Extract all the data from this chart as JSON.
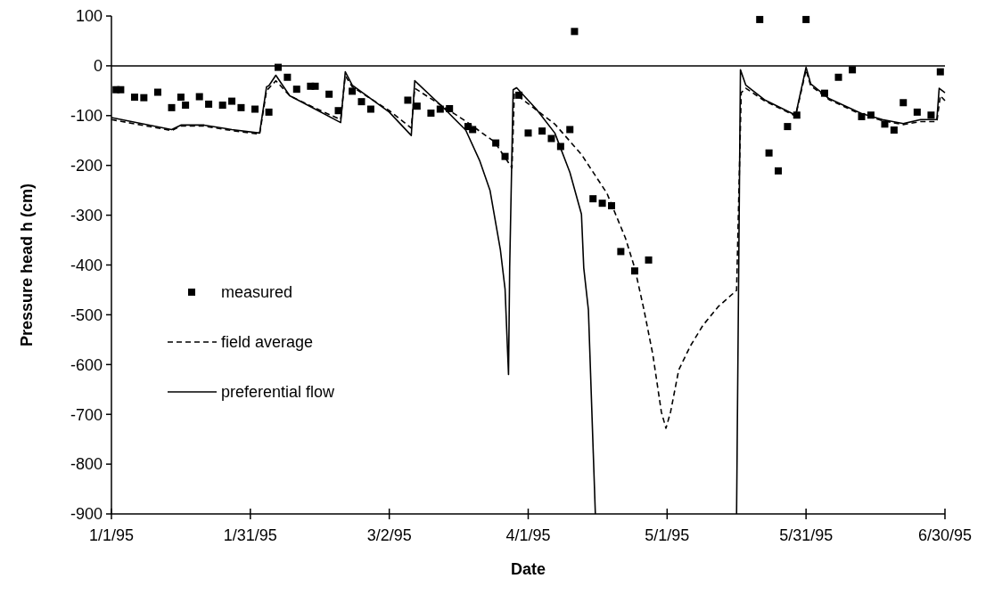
{
  "chart_data": {
    "type": "line",
    "xlabel": "Date",
    "ylabel": "Pressure head h (cm)",
    "xlim": [
      "1995-01-01",
      "1995-06-30"
    ],
    "xticks": [
      {
        "value": "1995-01-01",
        "label": "1/1/95"
      },
      {
        "value": "1995-01-31",
        "label": "1/31/95"
      },
      {
        "value": "1995-03-02",
        "label": "3/2/95"
      },
      {
        "value": "1995-04-01",
        "label": "4/1/95"
      },
      {
        "value": "1995-05-01",
        "label": "5/1/95"
      },
      {
        "value": "1995-05-31",
        "label": "5/31/95"
      },
      {
        "value": "1995-06-30",
        "label": "6/30/95"
      }
    ],
    "ylim": [
      -900,
      100
    ],
    "yticks": [
      -900,
      -800,
      -700,
      -600,
      -500,
      -400,
      -300,
      -200,
      -100,
      0,
      100
    ],
    "grid": false,
    "legend": "left",
    "ref_lines": [
      {
        "axis": "y",
        "value": 0,
        "color": "#000000"
      }
    ],
    "series": [
      {
        "name": "measured",
        "type": "scatter",
        "marker": "square",
        "color": "#000000",
        "x": [
          "1995-01-02",
          "1995-01-03",
          "1995-01-06",
          "1995-01-08",
          "1995-01-11",
          "1995-01-14",
          "1995-01-16",
          "1995-01-17",
          "1995-01-20",
          "1995-01-22",
          "1995-01-25",
          "1995-01-27",
          "1995-01-29",
          "1995-02-01",
          "1995-02-04",
          "1995-02-06",
          "1995-02-08",
          "1995-02-10",
          "1995-02-13",
          "1995-02-14",
          "1995-02-17",
          "1995-02-19",
          "1995-02-22",
          "1995-02-24",
          "1995-02-26",
          "1995-03-06",
          "1995-03-08",
          "1995-03-11",
          "1995-03-13",
          "1995-03-15",
          "1995-03-19",
          "1995-03-20",
          "1995-03-25",
          "1995-03-27",
          "1995-03-30",
          "1995-04-01",
          "1995-04-04",
          "1995-04-06",
          "1995-04-08",
          "1995-04-10",
          "1995-04-11",
          "1995-04-15",
          "1995-04-17",
          "1995-04-19",
          "1995-04-21",
          "1995-04-24",
          "1995-04-27",
          "1995-05-21",
          "1995-05-23",
          "1995-05-25",
          "1995-05-27",
          "1995-05-29",
          "1995-05-31",
          "1995-06-04",
          "1995-06-07",
          "1995-06-10",
          "1995-06-12",
          "1995-06-14",
          "1995-06-17",
          "1995-06-19",
          "1995-06-21",
          "1995-06-24",
          "1995-06-27",
          "1995-06-29"
        ],
        "values": [
          -48,
          -48,
          -63,
          -64,
          -53,
          -84,
          -63,
          -79,
          -62,
          -77,
          -79,
          -71,
          -84,
          -87,
          -93,
          -3,
          -23,
          -47,
          -41,
          -41,
          -57,
          -90,
          -51,
          -72,
          -87,
          -69,
          -81,
          -95,
          -87,
          -86,
          -122,
          -128,
          -155,
          -182,
          -59,
          -135,
          -131,
          -146,
          -162,
          -128,
          69,
          -267,
          -276,
          -281,
          -373,
          -412,
          -390,
          93,
          -175,
          -211,
          -122,
          -99,
          93,
          -55,
          -23,
          -8,
          -102,
          -99,
          -117,
          -129,
          -74,
          -93,
          -99,
          -12
        ]
      },
      {
        "name": "field average",
        "line_style": "dashed",
        "marker": "none",
        "color": "#000000",
        "x": [
          "1995-01-01",
          "1995-01-14",
          "1995-01-16",
          "1995-01-21",
          "1995-01-27",
          "1995-02-02",
          "1995-02-03T12:00",
          "1995-02-05T12:00",
          "1995-02-08T12:00",
          "1995-02-14",
          "1995-02-19T12:00",
          "1995-02-20T12:00",
          "1995-02-22",
          "1995-03-02",
          "1995-03-06T18:00",
          "1995-03-07T12:00",
          "1995-03-08T12:00",
          "1995-03-18T12:00",
          "1995-03-24T18:00",
          "1995-03-28T12:00",
          "1995-03-29",
          "1995-03-30",
          "1995-04-06T18:00",
          "1995-04-12T12:00",
          "1995-04-18",
          "1995-04-22",
          "1995-04-24",
          "1995-04-26",
          "1995-04-27T22:00",
          "1995-04-29T18:00",
          "1995-04-30T18:00",
          "1995-05-01T18:00",
          "1995-05-03T12:00",
          "1995-05-06",
          "1995-05-08T18:00",
          "1995-05-12",
          "1995-05-16",
          "1995-05-17",
          "1995-05-18",
          "1995-05-22",
          "1995-05-28T18:00",
          "1995-05-31",
          "1995-06-01",
          "1995-06-05",
          "1995-06-12",
          "1995-06-16T12:00",
          "1995-06-21",
          "1995-06-24T18:00",
          "1995-06-28T06:00",
          "1995-06-29",
          "1995-06-30"
        ],
        "values": [
          -108,
          -130,
          -121,
          -121,
          -130,
          -137,
          -50,
          -30,
          -60,
          -85,
          -108,
          -20,
          -42,
          -90,
          -125,
          -45,
          -51,
          -111,
          -153,
          -205,
          -57,
          -62,
          -117,
          -178,
          -256,
          -346,
          -406,
          -490,
          -580,
          -695,
          -728,
          -695,
          -611,
          -563,
          -521,
          -484,
          -451,
          -54,
          -45,
          -70,
          -101,
          -8,
          -40,
          -68,
          -98,
          -110,
          -118,
          -112,
          -112,
          -60,
          -70
        ]
      },
      {
        "name": "preferential flow",
        "line_style": "solid",
        "marker": "none",
        "color": "#000000",
        "x": [
          "1995-01-01",
          "1995-01-14",
          "1995-01-16",
          "1995-01-21",
          "1995-01-27",
          "1995-02-02",
          "1995-02-03T12:00",
          "1995-02-04",
          "1995-02-05T12:00",
          "1995-02-08T12:00",
          "1995-02-14",
          "1995-02-19T12:00",
          "1995-02-20T12:00",
          "1995-02-22",
          "1995-03-02",
          "1995-03-06T18:00",
          "1995-03-07T12:00",
          "1995-03-14",
          "1995-03-18T12:00",
          "1995-03-21T12:00",
          "1995-03-23T18:00",
          "1995-03-26",
          "1995-03-27",
          "1995-03-27T18:00",
          "1995-03-28",
          "1995-03-28T18:00",
          "1995-03-29T12:00",
          "1995-04-02T18:00",
          "1995-04-06T18:00",
          "1995-04-10",
          "1995-04-12T12:00",
          "1995-04-13",
          "1995-04-14",
          "1995-04-15T12:00",
          "1995-04-30",
          "1995-05-16",
          "1995-05-16T20:00",
          "1995-05-18",
          "1995-05-22",
          "1995-05-28T18:00",
          "1995-05-31",
          "1995-06-01",
          "1995-06-05",
          "1995-06-12",
          "1995-06-16T12:00",
          "1995-06-21",
          "1995-06-24T18:00",
          "1995-06-28T06:00",
          "1995-06-28T18:00",
          "1995-06-30"
        ],
        "values": [
          -104,
          -128,
          -119,
          -119,
          -128,
          -135,
          -42,
          -40,
          -19,
          -60,
          -87,
          -114,
          -12,
          -39,
          -93,
          -140,
          -30,
          -87,
          -129,
          -190,
          -250,
          -370,
          -448,
          -620,
          -406,
          -48,
          -44,
          -87,
          -135,
          -214,
          -298,
          -406,
          -490,
          -900,
          null,
          -900,
          -8,
          -39,
          -68,
          -99,
          -3,
          -36,
          -66,
          -96,
          -108,
          -116,
          -108,
          -108,
          -45,
          -54
        ]
      }
    ]
  }
}
